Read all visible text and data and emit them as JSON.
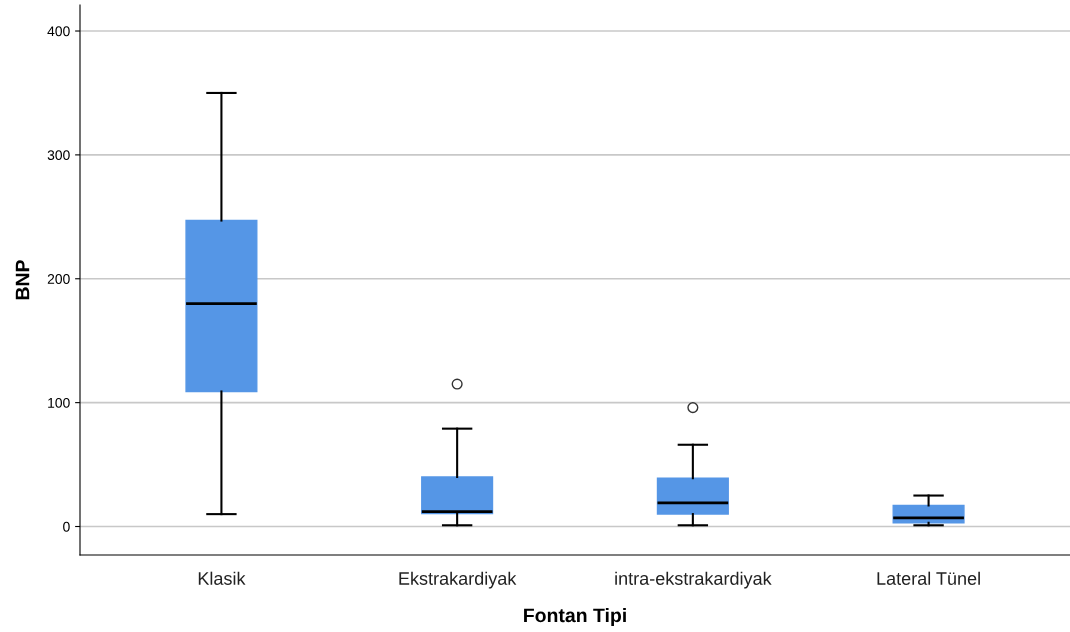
{
  "chart_data": {
    "type": "box",
    "xlabel": "Fontan Tipi",
    "ylabel": "BNP",
    "categories": [
      "Klasik",
      "Ekstrakardiyak",
      "intra-ekstrakardiyak",
      "Lateral Tünel"
    ],
    "series": [
      {
        "color": "#5596e6",
        "boxes": [
          {
            "low": 10,
            "q1": 109,
            "median": 180,
            "q3": 247,
            "high": 350
          },
          {
            "low": 1,
            "q1": 10.5,
            "median": 12,
            "q3": 40,
            "high": 79,
            "outliers": [
              115
            ]
          },
          {
            "low": 1,
            "q1": 10,
            "median": 19,
            "q3": 39,
            "high": 66,
            "outliers": [
              96
            ]
          },
          {
            "low": 1,
            "q1": 3,
            "median": 7,
            "q3": 17,
            "high": 25
          }
        ]
      }
    ],
    "ylim": [
      -23,
      421
    ],
    "yticks": [
      0,
      100,
      200,
      300,
      400
    ],
    "grid": "y",
    "legend": false
  }
}
